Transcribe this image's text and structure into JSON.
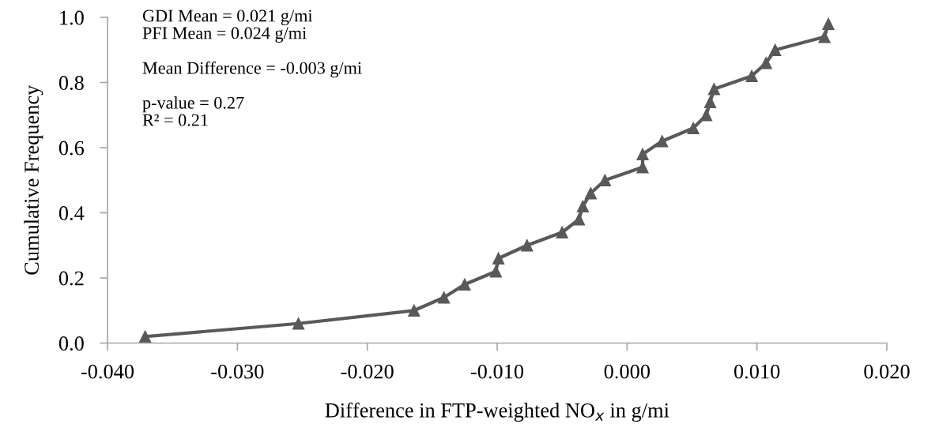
{
  "chart_data": {
    "type": "line",
    "xlabel": "Difference in FTP-weighted NO$_{x}$ in g/mi",
    "ylabel": "Cumulative Frequency",
    "annotations": [
      "GDI Mean = 0.021 g/mi",
      "PFI Mean = 0.024 g/mi",
      "Mean Difference = -0.003 g/mi",
      "p-value = 0.27",
      "R² = 0.21"
    ],
    "series": [
      {
        "color": "#595959",
        "marker": "triangle",
        "line_style": "solid",
        "x": [
          -0.0371,
          -0.0253,
          -0.0164,
          -0.0141,
          -0.0125,
          -0.0101,
          -0.0099,
          -0.0077,
          -0.005,
          -0.0037,
          -0.0034,
          -0.0028,
          -0.0017,
          0.0012,
          0.0012,
          0.0027,
          0.0051,
          0.0061,
          0.0064,
          0.0067,
          0.0096,
          0.0107,
          0.0114,
          0.0152,
          0.0155
        ],
        "values": [
          0.02,
          0.06,
          0.1,
          0.14,
          0.18,
          0.22,
          0.26,
          0.3,
          0.34,
          0.38,
          0.42,
          0.46,
          0.5,
          0.54,
          0.58,
          0.62,
          0.66,
          0.7,
          0.74,
          0.78,
          0.82,
          0.86,
          0.9,
          0.94,
          0.98
        ]
      }
    ],
    "xlim": [
      -0.04,
      0.02
    ],
    "xticks": [
      {
        "value": -0.04,
        "label": "-0.040"
      },
      {
        "value": -0.03,
        "label": "-0.030"
      },
      {
        "value": -0.02,
        "label": "-0.020"
      },
      {
        "value": -0.01,
        "label": "-0.010"
      },
      {
        "value": 0,
        "label": "0.000"
      },
      {
        "value": 0.01,
        "label": "0.010"
      },
      {
        "value": 0.02,
        "label": "0.020"
      }
    ],
    "ylim": [
      0,
      1
    ],
    "yticks": [
      {
        "value": 0,
        "label": "0.0"
      },
      {
        "value": 0.2,
        "label": "0.2"
      },
      {
        "value": 0.4,
        "label": "0.4"
      },
      {
        "value": 0.6,
        "label": "0.6"
      },
      {
        "value": 0.8,
        "label": "0.8"
      },
      {
        "value": 1,
        "label": "1.0"
      }
    ],
    "grid": false,
    "legend": false
  }
}
